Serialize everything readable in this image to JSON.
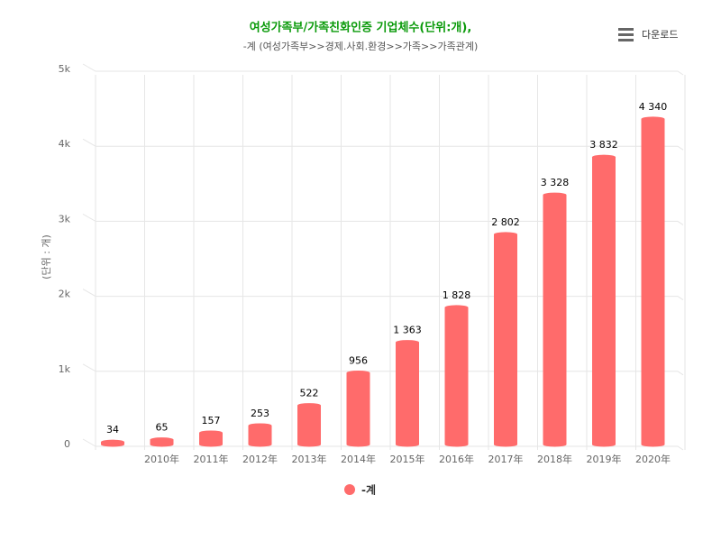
{
  "chart_data": {
    "type": "bar",
    "title": "여성가족부/가족친화인증 기업체수(단위:개),",
    "subtitle": "-계 (여성가족부>>경제.사회.환경>>가족>>가족관계)",
    "y_label": "(단위 : 개)",
    "download_label": "다운로드",
    "categories": [
      null,
      "2010年",
      "2011年",
      "2012年",
      "2013年",
      "2014年",
      "2015年",
      "2016年",
      "2017年",
      "2018年",
      "2019年",
      "2020年"
    ],
    "series": [
      {
        "name": "-계",
        "color": "#ff6b6b",
        "values": [
          34,
          65,
          157,
          253,
          522,
          956,
          1363,
          1828,
          2802,
          3328,
          3832,
          4340
        ],
        "value_labels": [
          "34",
          "65",
          "157",
          "253",
          "522",
          "956",
          "1 363",
          "1 828",
          "2 802",
          "3 328",
          "3 832",
          "4 340"
        ]
      }
    ],
    "ylim": [
      0,
      5000
    ],
    "yticks": [
      0,
      {
        "value": 1000,
        "label": "1k"
      },
      {
        "value": 2000,
        "label": "2k"
      },
      {
        "value": 3000,
        "label": "3k"
      },
      {
        "value": 4000,
        "label": "4k"
      },
      {
        "value": 5000,
        "label": "5k"
      }
    ],
    "grid": true
  }
}
